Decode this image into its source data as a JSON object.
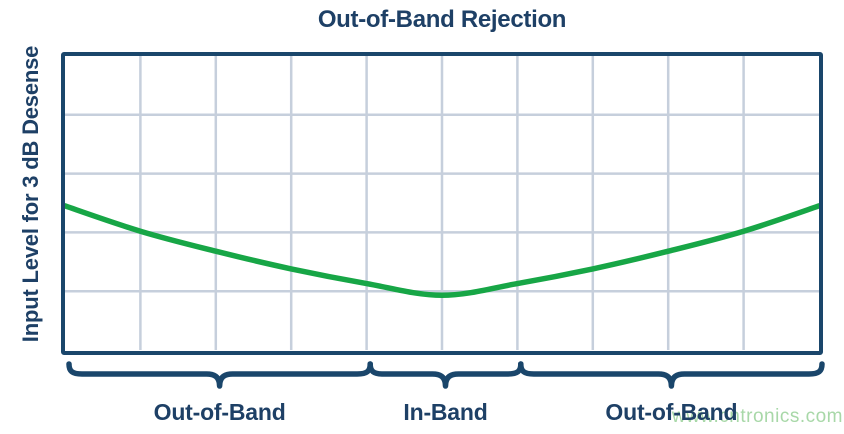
{
  "chart_data": {
    "type": "line",
    "title": "Out-of-Band Rejection",
    "xlabel": "",
    "ylabel": "Input Level for 3 dB Desense",
    "x_axis": {
      "min": 0,
      "max": 10,
      "gridline_divisions": 10,
      "tick_labels": "none"
    },
    "y_axis": {
      "min": 0,
      "max": 5,
      "gridline_divisions": 5,
      "tick_labels": "none"
    },
    "grid": true,
    "legend": "none",
    "series": [
      {
        "name": "input-level-for-3dB-desense",
        "color": "#17A646",
        "x": [
          0,
          1,
          2,
          3,
          4,
          5,
          6,
          7,
          8,
          9,
          10
        ],
        "y": [
          2.45,
          2.02,
          1.68,
          1.38,
          1.13,
          0.93,
          1.13,
          1.38,
          1.68,
          2.02,
          2.45
        ]
      }
    ],
    "bands": [
      {
        "label": "Out-of-Band",
        "x0": 0,
        "x1": 4
      },
      {
        "label": "In-Band",
        "x0": 4,
        "x1": 6
      },
      {
        "label": "Out-of-Band",
        "x0": 6,
        "x1": 10
      }
    ]
  },
  "watermark": {
    "text": "www.cntronics.com",
    "color": "#A8D8A8"
  },
  "colors": {
    "navy": "#1E4066",
    "border": "#1A466B",
    "grid": "#C6CFDC",
    "green": "#17A646"
  }
}
